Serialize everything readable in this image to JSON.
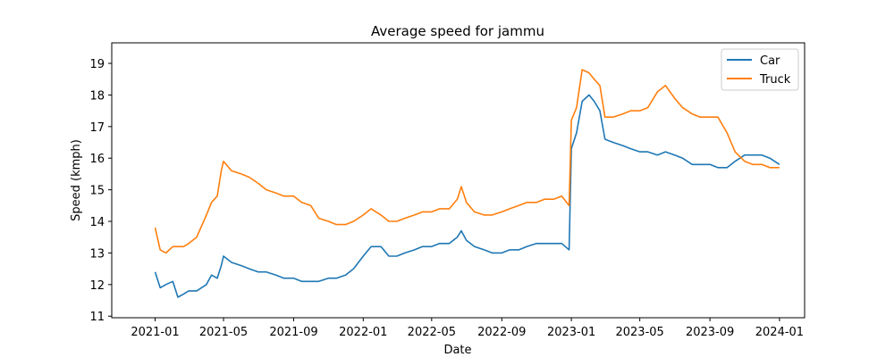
{
  "chart_data": {
    "type": "line",
    "title": "Average speed for jammu",
    "xlabel": "Date",
    "ylabel": "Speed (kmph)",
    "x_scale": "date",
    "xlim": [
      "2020-10-17",
      "2024-02-14"
    ],
    "ylim": [
      10.95,
      19.65
    ],
    "x_ticks": [
      "2021-01",
      "2021-05",
      "2021-09",
      "2022-01",
      "2022-05",
      "2022-09",
      "2023-01",
      "2023-05",
      "2023-09",
      "2024-01"
    ],
    "x_tick_dates": [
      "2021-01-01",
      "2021-05-01",
      "2021-09-01",
      "2022-01-01",
      "2022-05-01",
      "2022-09-01",
      "2023-01-01",
      "2023-05-01",
      "2023-09-01",
      "2024-01-01"
    ],
    "y_ticks": [
      11,
      12,
      13,
      14,
      15,
      16,
      17,
      18,
      19
    ],
    "grid": false,
    "legend": "top-right",
    "series": [
      {
        "name": "Car",
        "color": "#1f77b4",
        "points": [
          [
            "2021-01-01",
            12.4
          ],
          [
            "2021-01-10",
            11.9
          ],
          [
            "2021-01-20",
            12.0
          ],
          [
            "2021-02-01",
            12.1
          ],
          [
            "2021-02-10",
            11.6
          ],
          [
            "2021-02-20",
            11.7
          ],
          [
            "2021-03-01",
            11.8
          ],
          [
            "2021-03-15",
            11.8
          ],
          [
            "2021-04-01",
            12.0
          ],
          [
            "2021-04-10",
            12.3
          ],
          [
            "2021-04-20",
            12.2
          ],
          [
            "2021-04-27",
            12.6
          ],
          [
            "2021-05-01",
            12.9
          ],
          [
            "2021-05-15",
            12.7
          ],
          [
            "2021-06-01",
            12.6
          ],
          [
            "2021-06-15",
            12.5
          ],
          [
            "2021-07-01",
            12.4
          ],
          [
            "2021-07-15",
            12.4
          ],
          [
            "2021-08-01",
            12.3
          ],
          [
            "2021-08-15",
            12.2
          ],
          [
            "2021-09-01",
            12.2
          ],
          [
            "2021-09-15",
            12.1
          ],
          [
            "2021-10-01",
            12.1
          ],
          [
            "2021-10-15",
            12.1
          ],
          [
            "2021-11-01",
            12.2
          ],
          [
            "2021-11-15",
            12.2
          ],
          [
            "2021-12-01",
            12.3
          ],
          [
            "2021-12-15",
            12.5
          ],
          [
            "2022-01-01",
            12.9
          ],
          [
            "2022-01-15",
            13.2
          ],
          [
            "2022-02-01",
            13.2
          ],
          [
            "2022-02-15",
            12.9
          ],
          [
            "2022-03-01",
            12.9
          ],
          [
            "2022-03-15",
            13.0
          ],
          [
            "2022-04-01",
            13.1
          ],
          [
            "2022-04-15",
            13.2
          ],
          [
            "2022-05-01",
            13.2
          ],
          [
            "2022-05-15",
            13.3
          ],
          [
            "2022-06-01",
            13.3
          ],
          [
            "2022-06-15",
            13.5
          ],
          [
            "2022-06-22",
            13.7
          ],
          [
            "2022-07-01",
            13.4
          ],
          [
            "2022-07-15",
            13.2
          ],
          [
            "2022-08-01",
            13.1
          ],
          [
            "2022-08-15",
            13.0
          ],
          [
            "2022-09-01",
            13.0
          ],
          [
            "2022-09-15",
            13.1
          ],
          [
            "2022-10-01",
            13.1
          ],
          [
            "2022-10-15",
            13.2
          ],
          [
            "2022-11-01",
            13.3
          ],
          [
            "2022-11-15",
            13.3
          ],
          [
            "2022-12-01",
            13.3
          ],
          [
            "2022-12-15",
            13.3
          ],
          [
            "2022-12-28",
            13.1
          ],
          [
            "2023-01-01",
            16.3
          ],
          [
            "2023-01-10",
            16.8
          ],
          [
            "2023-01-20",
            17.8
          ],
          [
            "2023-02-01",
            18.0
          ],
          [
            "2023-02-10",
            17.8
          ],
          [
            "2023-02-20",
            17.5
          ],
          [
            "2023-03-01",
            16.6
          ],
          [
            "2023-03-15",
            16.5
          ],
          [
            "2023-04-01",
            16.4
          ],
          [
            "2023-04-15",
            16.3
          ],
          [
            "2023-05-01",
            16.2
          ],
          [
            "2023-05-15",
            16.2
          ],
          [
            "2023-06-01",
            16.1
          ],
          [
            "2023-06-15",
            16.2
          ],
          [
            "2023-07-01",
            16.1
          ],
          [
            "2023-07-15",
            16.0
          ],
          [
            "2023-08-01",
            15.8
          ],
          [
            "2023-08-15",
            15.8
          ],
          [
            "2023-09-01",
            15.8
          ],
          [
            "2023-09-15",
            15.7
          ],
          [
            "2023-10-01",
            15.7
          ],
          [
            "2023-10-15",
            15.9
          ],
          [
            "2023-11-01",
            16.1
          ],
          [
            "2023-11-15",
            16.1
          ],
          [
            "2023-12-01",
            16.1
          ],
          [
            "2023-12-15",
            16.0
          ],
          [
            "2024-01-01",
            15.8
          ]
        ]
      },
      {
        "name": "Truck",
        "color": "#ff7f0e",
        "points": [
          [
            "2021-01-01",
            13.8
          ],
          [
            "2021-01-10",
            13.1
          ],
          [
            "2021-01-20",
            13.0
          ],
          [
            "2021-02-01",
            13.2
          ],
          [
            "2021-02-10",
            13.2
          ],
          [
            "2021-02-20",
            13.2
          ],
          [
            "2021-03-01",
            13.3
          ],
          [
            "2021-03-15",
            13.5
          ],
          [
            "2021-04-01",
            14.2
          ],
          [
            "2021-04-10",
            14.6
          ],
          [
            "2021-04-20",
            14.8
          ],
          [
            "2021-04-27",
            15.6
          ],
          [
            "2021-05-01",
            15.9
          ],
          [
            "2021-05-15",
            15.6
          ],
          [
            "2021-06-01",
            15.5
          ],
          [
            "2021-06-15",
            15.4
          ],
          [
            "2021-07-01",
            15.2
          ],
          [
            "2021-07-15",
            15.0
          ],
          [
            "2021-08-01",
            14.9
          ],
          [
            "2021-08-15",
            14.8
          ],
          [
            "2021-09-01",
            14.8
          ],
          [
            "2021-09-15",
            14.6
          ],
          [
            "2021-10-01",
            14.5
          ],
          [
            "2021-10-15",
            14.1
          ],
          [
            "2021-11-01",
            14.0
          ],
          [
            "2021-11-15",
            13.9
          ],
          [
            "2021-12-01",
            13.9
          ],
          [
            "2021-12-15",
            14.0
          ],
          [
            "2022-01-01",
            14.2
          ],
          [
            "2022-01-15",
            14.4
          ],
          [
            "2022-02-01",
            14.2
          ],
          [
            "2022-02-15",
            14.0
          ],
          [
            "2022-03-01",
            14.0
          ],
          [
            "2022-03-15",
            14.1
          ],
          [
            "2022-04-01",
            14.2
          ],
          [
            "2022-04-15",
            14.3
          ],
          [
            "2022-05-01",
            14.3
          ],
          [
            "2022-05-15",
            14.4
          ],
          [
            "2022-06-01",
            14.4
          ],
          [
            "2022-06-15",
            14.7
          ],
          [
            "2022-06-22",
            15.1
          ],
          [
            "2022-07-01",
            14.6
          ],
          [
            "2022-07-15",
            14.3
          ],
          [
            "2022-08-01",
            14.2
          ],
          [
            "2022-08-15",
            14.2
          ],
          [
            "2022-09-01",
            14.3
          ],
          [
            "2022-09-15",
            14.4
          ],
          [
            "2022-10-01",
            14.5
          ],
          [
            "2022-10-15",
            14.6
          ],
          [
            "2022-11-01",
            14.6
          ],
          [
            "2022-11-15",
            14.7
          ],
          [
            "2022-12-01",
            14.7
          ],
          [
            "2022-12-15",
            14.8
          ],
          [
            "2022-12-28",
            14.5
          ],
          [
            "2023-01-01",
            17.2
          ],
          [
            "2023-01-10",
            17.6
          ],
          [
            "2023-01-20",
            18.8
          ],
          [
            "2023-02-01",
            18.7
          ],
          [
            "2023-02-10",
            18.5
          ],
          [
            "2023-02-20",
            18.3
          ],
          [
            "2023-03-01",
            17.3
          ],
          [
            "2023-03-15",
            17.3
          ],
          [
            "2023-04-01",
            17.4
          ],
          [
            "2023-04-15",
            17.5
          ],
          [
            "2023-05-01",
            17.5
          ],
          [
            "2023-05-15",
            17.6
          ],
          [
            "2023-06-01",
            18.1
          ],
          [
            "2023-06-15",
            18.3
          ],
          [
            "2023-07-01",
            17.9
          ],
          [
            "2023-07-15",
            17.6
          ],
          [
            "2023-08-01",
            17.4
          ],
          [
            "2023-08-15",
            17.3
          ],
          [
            "2023-09-01",
            17.3
          ],
          [
            "2023-09-15",
            17.3
          ],
          [
            "2023-10-01",
            16.8
          ],
          [
            "2023-10-15",
            16.2
          ],
          [
            "2023-11-01",
            15.9
          ],
          [
            "2023-11-15",
            15.8
          ],
          [
            "2023-12-01",
            15.8
          ],
          [
            "2023-12-15",
            15.7
          ],
          [
            "2024-01-01",
            15.7
          ]
        ]
      }
    ]
  }
}
